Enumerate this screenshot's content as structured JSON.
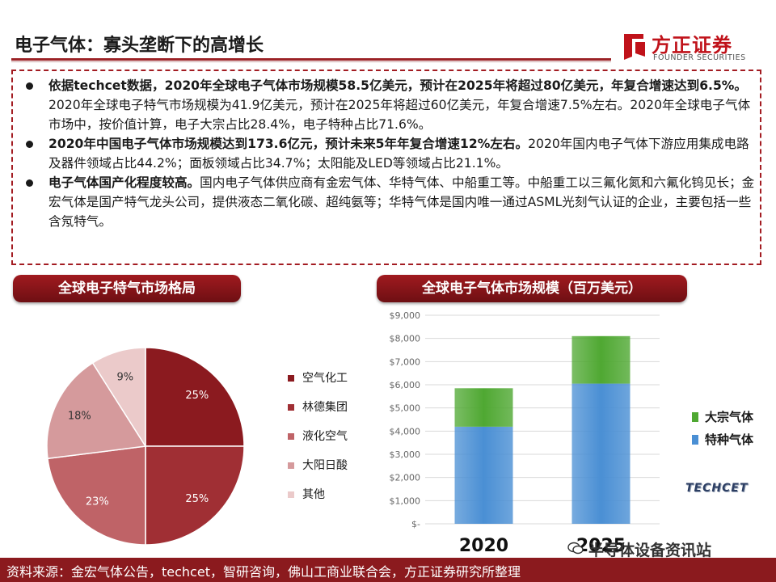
{
  "header": {
    "title": "电子气体：寡头垄断下的高增长"
  },
  "logo": {
    "name_cn": "方正证券",
    "name_en": "FOUNDER SECURITIES"
  },
  "bullets": [
    {
      "bold": "依据techcet数据，2020年全球电子气体市场规模58.5亿美元，预计在2025年将超过80亿美元，年复合增速达到6.5%。",
      "normal": "2020年全球电子特气市场规模为41.9亿美元，预计在2025年将超过60亿美元，年复合增速7.5%左右。2020年全球电子气体市场中，按价值计算，电子大宗占比28.4%，电子特种占比71.6%。"
    },
    {
      "bold": "2020年中国电子气体市场规模达到173.6亿元，预计未来5年年复合增速12%左右。",
      "normal": "2020年国内电子气体下游应用集成电路及器件领域占比44.2%；面板领域占比34.7%；太阳能及LED等领域占比21.1%。"
    },
    {
      "bold": "电子气体国产化程度较高。",
      "normal": "国内电子气体供应商有金宏气体、华特气体、中船重工等。中船重工以三氟化氮和六氟化钨见长；金宏气体是国产特气龙头公司，提供液态二氧化碳、超纯氨等；华特气体是国内唯一通过ASML光刻气认证的企业，主要包括一些含氖特气。"
    }
  ],
  "pie_panel": {
    "title": "全球电子特气市场格局"
  },
  "bar_panel": {
    "title": "全球电子气体市场规模（百万美元）"
  },
  "chart_data": [
    {
      "type": "pie",
      "title": "全球电子特气市场格局",
      "slices": [
        {
          "label": "空气化工",
          "value": 25,
          "display": "25%",
          "color": "#8b1a1f"
        },
        {
          "label": "林德集团",
          "value": 25,
          "display": "25%",
          "color": "#a02f34"
        },
        {
          "label": "液化空气",
          "value": 23,
          "display": "23%",
          "color": "#bf6367"
        },
        {
          "label": "大阳日酸",
          "value": 18,
          "display": "18%",
          "color": "#d59a9c"
        },
        {
          "label": "其他",
          "value": 9,
          "display": "9%",
          "color": "#ebcaca"
        }
      ]
    },
    {
      "type": "bar",
      "stacked": true,
      "title": "全球电子气体市场规模（百万美元）",
      "categories": [
        "2020",
        "2025"
      ],
      "series": [
        {
          "name": "特种气体",
          "values": [
            4190,
            6050
          ],
          "color": "#4a8fd4"
        },
        {
          "name": "大宗气体",
          "values": [
            1660,
            2050
          ],
          "color": "#4fa832"
        }
      ],
      "ylim": [
        0,
        9000
      ],
      "yticks": [
        "$-",
        "$1,000",
        "$2,000",
        "$3,000",
        "$4,000",
        "$5,000",
        "$6,000",
        "$7,000",
        "$8,000",
        "$9,000"
      ],
      "grid": true,
      "legend": "right",
      "legend_order": [
        "大宗气体",
        "特种气体"
      ],
      "source_mark": "TECHCET"
    }
  ],
  "watermark": {
    "text": "半导体设备资讯站"
  },
  "source": {
    "text": "资料来源：金宏气体公告，techcet，智研咨询，佛山工商业联合会，方正证券研究所整理"
  }
}
